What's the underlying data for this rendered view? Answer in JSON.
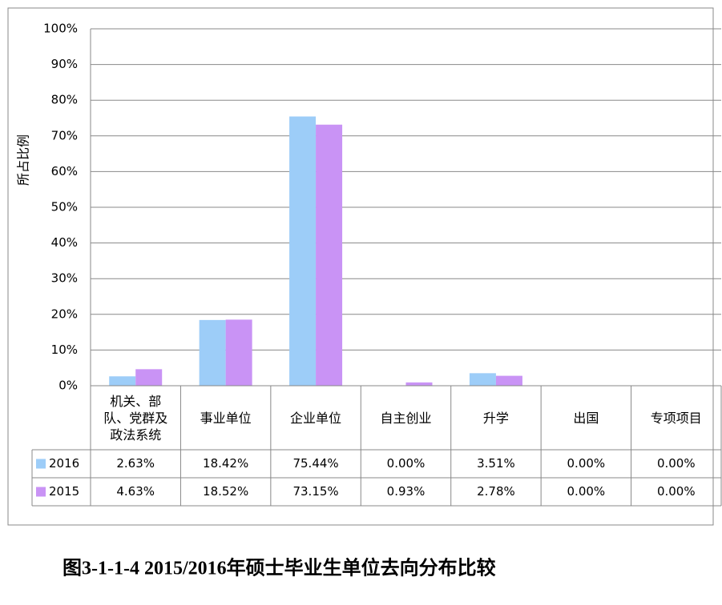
{
  "chart_data": {
    "type": "bar",
    "title": "图3-1-1-4  2015/2016年硕士毕业生单位去向分布比较",
    "y_label": "所占比例",
    "categories": [
      "机关、部队、党群及政法系统",
      "事业单位",
      "企业单位",
      "自主创业",
      "升学",
      "出国",
      "专项项目"
    ],
    "series": [
      {
        "name": "2016",
        "color": "#9dcdf8",
        "values": [
          2.63,
          18.42,
          75.44,
          0.0,
          3.51,
          0.0,
          0.0
        ],
        "value_labels": [
          "2.63%",
          "18.42%",
          "75.44%",
          "0.00%",
          "3.51%",
          "0.00%",
          "0.00%"
        ]
      },
      {
        "name": "2015",
        "color": "#c993f5",
        "values": [
          4.63,
          18.52,
          73.15,
          0.93,
          2.78,
          0.0,
          0.0
        ],
        "value_labels": [
          "4.63%",
          "18.52%",
          "73.15%",
          "0.93%",
          "2.78%",
          "0.00%",
          "0.00%"
        ]
      }
    ],
    "ylim": [
      0,
      100
    ],
    "yticks": [
      {
        "value": 0,
        "label": "0%"
      },
      {
        "value": 10,
        "label": "10%"
      },
      {
        "value": 20,
        "label": "20%"
      },
      {
        "value": 30,
        "label": "30%"
      },
      {
        "value": 40,
        "label": "40%"
      },
      {
        "value": 50,
        "label": "50%"
      },
      {
        "value": 60,
        "label": "60%"
      },
      {
        "value": 70,
        "label": "70%"
      },
      {
        "value": 80,
        "label": "80%"
      },
      {
        "value": 90,
        "label": "90%"
      },
      {
        "value": 100,
        "label": "100%"
      }
    ],
    "grid": true
  }
}
